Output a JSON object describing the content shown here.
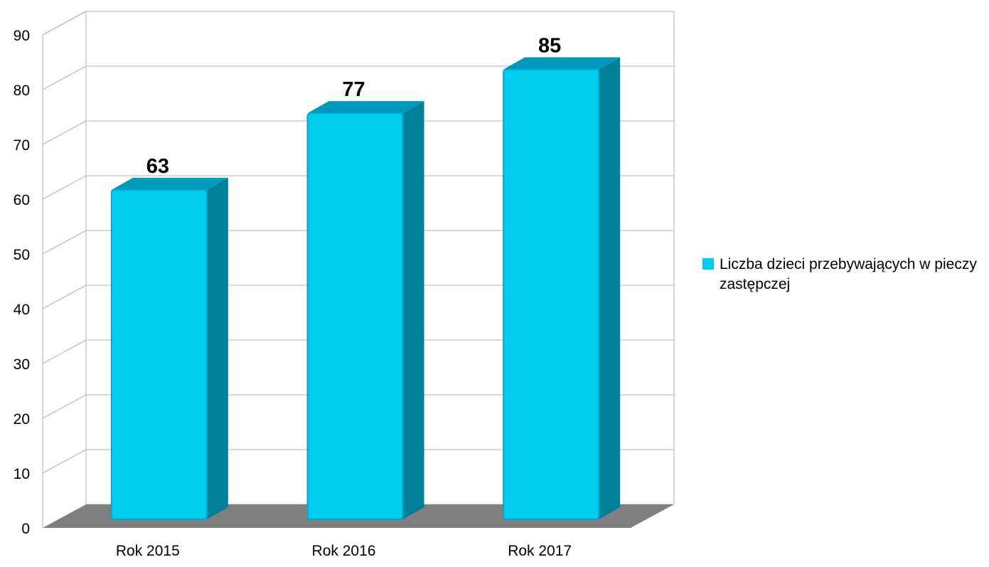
{
  "chart_data": {
    "type": "bar",
    "categories": [
      "Rok 2015",
      "Rok 2016",
      "Rok 2017"
    ],
    "series": [
      {
        "name": "Liczba dzieci przebywających w pieczy zastępczej",
        "values": [
          63,
          77,
          85
        ]
      }
    ],
    "data_labels": [
      "63",
      "77",
      "85"
    ],
    "ylim": [
      0,
      90
    ],
    "yticks": [
      0,
      10,
      20,
      30,
      40,
      50,
      60,
      70,
      80,
      90
    ],
    "grid": true,
    "legend_position": "right",
    "style": "3d",
    "colors": {
      "bar_front": "#00ccee",
      "bar_side": "#007f99",
      "bar_top": "#0099bb",
      "floor": "#7f7f7f",
      "grid": "#b3b3b3"
    }
  }
}
